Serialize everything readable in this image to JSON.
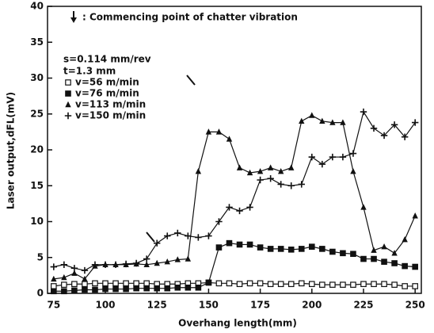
{
  "chart_data": {
    "type": "line",
    "annotation": ": Commencing point of chatter vibration",
    "legend_notes": [
      "s=0.114 mm/rev",
      "t=1.3 mm"
    ],
    "xlabel": "Overhang length(mm)",
    "ylabel": "Laser output,dFL(mV)",
    "xlim": [
      72,
      253
    ],
    "xticks": [
      75,
      100,
      125,
      150,
      175,
      200,
      225,
      250
    ],
    "ylim": [
      0,
      40
    ],
    "yticks": [
      0,
      5,
      10,
      15,
      20,
      25,
      30,
      35,
      40
    ],
    "x": [
      75,
      80,
      85,
      90,
      95,
      100,
      105,
      110,
      115,
      120,
      125,
      130,
      135,
      140,
      145,
      150,
      155,
      160,
      165,
      170,
      175,
      180,
      185,
      190,
      195,
      200,
      205,
      210,
      215,
      220,
      225,
      230,
      235,
      240,
      245,
      250
    ],
    "series": [
      {
        "name": "v=56 m/min",
        "color": "#111111",
        "marker": "open-square",
        "values": [
          1.0,
          1.2,
          1.3,
          1.3,
          1.4,
          1.4,
          1.4,
          1.4,
          1.4,
          1.4,
          1.3,
          1.3,
          1.3,
          1.4,
          1.4,
          1.5,
          1.4,
          1.4,
          1.3,
          1.4,
          1.4,
          1.3,
          1.3,
          1.3,
          1.4,
          1.3,
          1.2,
          1.2,
          1.2,
          1.2,
          1.3,
          1.3,
          1.3,
          1.2,
          1.0,
          1.0
        ]
      },
      {
        "name": "v=76 m/min",
        "color": "#111111",
        "marker": "filled-square",
        "values": [
          0.3,
          0.3,
          0.4,
          0.5,
          0.5,
          0.6,
          0.6,
          0.6,
          0.7,
          0.7,
          0.7,
          0.7,
          0.8,
          0.8,
          0.8,
          1.5,
          6.4,
          7.0,
          6.8,
          6.8,
          6.4,
          6.2,
          6.2,
          6.1,
          6.2,
          6.5,
          6.2,
          5.8,
          5.6,
          5.5,
          4.8,
          4.8,
          4.4,
          4.2,
          3.8,
          3.7
        ]
      },
      {
        "name": "v=113 m/min",
        "color": "#111111",
        "marker": "triangle",
        "values": [
          2.0,
          2.2,
          2.8,
          2.0,
          3.8,
          4.0,
          4.0,
          4.0,
          4.1,
          4.0,
          4.2,
          4.4,
          4.7,
          4.8,
          17.0,
          22.5,
          22.5,
          21.5,
          17.5,
          16.8,
          17.0,
          17.5,
          17.0,
          17.5,
          24.0,
          24.8,
          24.0,
          23.8,
          23.8,
          17.0,
          12.0,
          6.0,
          6.5,
          5.6,
          7.5,
          10.8
        ]
      },
      {
        "name": "v=150 m/min",
        "color": "#111111",
        "marker": "plus",
        "values": [
          3.7,
          4.0,
          3.5,
          3.2,
          4.0,
          4.0,
          4.0,
          4.1,
          4.2,
          4.8,
          7.0,
          8.0,
          8.4,
          8.0,
          7.8,
          8.0,
          10.0,
          12.0,
          11.5,
          12.0,
          15.8,
          16.0,
          15.2,
          15.0,
          15.2,
          19.0,
          18.0,
          19.0,
          19.0,
          19.5,
          25.3,
          23.0,
          22.0,
          23.5,
          21.8,
          23.8
        ]
      }
    ]
  }
}
